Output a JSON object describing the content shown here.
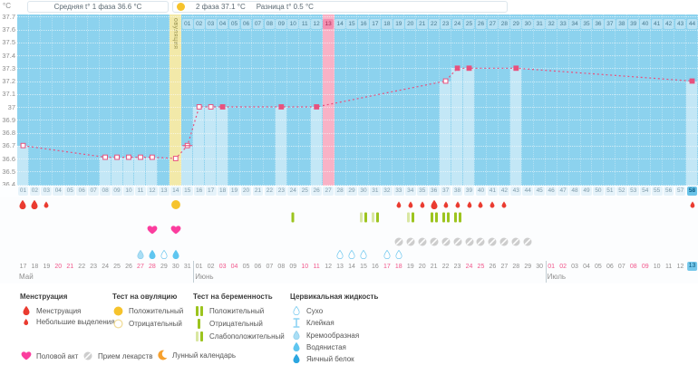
{
  "header": {
    "unit": "°C",
    "avg_phase1": "Средняя t° 1 фаза 36.6 °C",
    "phase2_label": "2 фаза 37.1 °C",
    "diff_label": "Разница t° 0.5 °C"
  },
  "colors": {
    "chart_bg": "#8cd2ee",
    "light_column": "#c8e9f7",
    "temp_line": "#e8517d",
    "ovulation_column": "#f2e9a9",
    "highlight_column": "#f8b2c6",
    "menstruation": "#ea3b30",
    "test_yellow": "#f6c32c",
    "test_green_dark": "#9cc41e",
    "test_green_light": "#d9e7a2",
    "heart": "#fb3d9e",
    "cervical_blue": "#5fc6f0",
    "current_day": "#69c3e8",
    "weekend_date": "#f1568b"
  },
  "chart_data": {
    "type": "line",
    "ylabel": "°C",
    "ylim": [
      36.4,
      37.7
    ],
    "ytick_labels": [
      "37.7",
      "37.6",
      "37.5",
      "37.4",
      "37.3",
      "37.2",
      "37.1",
      "37",
      "36.9",
      "36.8",
      "36.7",
      "36.6",
      "36.5",
      "36.4"
    ],
    "cycle_days": 58,
    "dpo_count": 44,
    "ovulation_day": 14,
    "ovulation_column_label": "овуляция",
    "highlighted_dpo": 13,
    "highlighted_cycle_day": 27,
    "current_cycle_day": 58,
    "grid": true,
    "points": [
      {
        "day": 1,
        "temp": 36.7
      },
      {
        "day": 8,
        "temp": 36.61
      },
      {
        "day": 9,
        "temp": 36.61
      },
      {
        "day": 10,
        "temp": 36.61
      },
      {
        "day": 11,
        "temp": 36.61
      },
      {
        "day": 12,
        "temp": 36.61
      },
      {
        "day": 14,
        "temp": 36.6
      },
      {
        "day": 15,
        "temp": 36.7,
        "excluded": true
      },
      {
        "day": 16,
        "temp": 37.0
      },
      {
        "day": 17,
        "temp": 37.0
      },
      {
        "day": 18,
        "temp": 37.0,
        "filled": true
      },
      {
        "day": 23,
        "temp": 37.0,
        "filled": true
      },
      {
        "day": 26,
        "temp": 37.0,
        "filled": true
      },
      {
        "day": 37,
        "temp": 37.2
      },
      {
        "day": 38,
        "temp": 37.3,
        "filled": true
      },
      {
        "day": 39,
        "temp": 37.3,
        "filled": true
      },
      {
        "day": 43,
        "temp": 37.3,
        "filled": true
      },
      {
        "day": 58,
        "temp": 37.2,
        "filled": true
      }
    ]
  },
  "events": {
    "menstruation": [
      {
        "day": 1,
        "size": "big"
      },
      {
        "day": 2,
        "size": "big"
      },
      {
        "day": 3,
        "size": "small"
      },
      {
        "day": 33,
        "size": "small"
      },
      {
        "day": 34,
        "size": "small"
      },
      {
        "day": 35,
        "size": "small"
      },
      {
        "day": 36,
        "size": "big"
      },
      {
        "day": 37,
        "size": "small"
      },
      {
        "day": 38,
        "size": "small"
      },
      {
        "day": 39,
        "size": "small"
      },
      {
        "day": 40,
        "size": "small"
      },
      {
        "day": 41,
        "size": "small"
      },
      {
        "day": 42,
        "size": "small"
      },
      {
        "day": 58,
        "size": "small"
      }
    ],
    "ovulation_tests": [
      {
        "day": 14,
        "result": "positive"
      }
    ],
    "pregnancy_tests": [
      {
        "day": 24,
        "result": "negative"
      },
      {
        "day": 30,
        "result": "weak"
      },
      {
        "day": 31,
        "result": "weak"
      },
      {
        "day": 34,
        "result": "weak"
      },
      {
        "day": 36,
        "result": "positive"
      },
      {
        "day": 37,
        "result": "positive"
      },
      {
        "day": 38,
        "result": "positive"
      }
    ],
    "intercourse": [
      12,
      14
    ],
    "medication": [
      33,
      34,
      35,
      36,
      37,
      38,
      39,
      40,
      41,
      42,
      43,
      44
    ],
    "cervical": [
      {
        "day": 11,
        "type": "creamy"
      },
      {
        "day": 12,
        "type": "watery"
      },
      {
        "day": 13,
        "type": "dry"
      },
      {
        "day": 14,
        "type": "watery"
      },
      {
        "day": 28,
        "type": "dry"
      },
      {
        "day": 29,
        "type": "dry"
      },
      {
        "day": 30,
        "type": "dry"
      },
      {
        "day": 32,
        "type": "dry"
      },
      {
        "day": 33,
        "type": "dry"
      }
    ]
  },
  "calendar": {
    "months": [
      {
        "name": "Май",
        "from": 17,
        "to": 31
      },
      {
        "name": "Июнь",
        "from": 1,
        "to": 30
      },
      {
        "name": "Июль",
        "from": 1,
        "to": 13
      }
    ],
    "first_day_weekday": "wednesday",
    "current_cycle_day": 58
  },
  "legend": {
    "columns": [
      {
        "title": "Менструация",
        "items": [
          {
            "icon": "drop-red-big",
            "label": "Менструация"
          },
          {
            "icon": "drop-red-small",
            "label": "Небольшие выделения"
          }
        ]
      },
      {
        "title": "Тест на овуляцию",
        "items": [
          {
            "icon": "circle-yellow",
            "label": "Положительный"
          },
          {
            "icon": "circle-outline",
            "label": "Отрицательный"
          }
        ]
      },
      {
        "title": "Тест на беременность",
        "items": [
          {
            "icon": "bars-positive",
            "label": "Положительный"
          },
          {
            "icon": "bar-negative",
            "label": "Отрицательный"
          },
          {
            "icon": "bars-weak",
            "label": "Слабоположительный"
          }
        ]
      },
      {
        "title": "Цервикальная жидкость",
        "items": [
          {
            "icon": "drop-outline",
            "label": "Сухо"
          },
          {
            "icon": "ibeam",
            "label": "Клейкая"
          },
          {
            "icon": "drop-creamy",
            "label": "Кремообразная"
          },
          {
            "icon": "drop-watery",
            "label": "Водянистая"
          },
          {
            "icon": "drop-eggwhite",
            "label": "Яичный белок"
          }
        ]
      }
    ],
    "extras": [
      {
        "icon": "heart",
        "label": "Половой акт"
      },
      {
        "icon": "pill",
        "label": "Прием лекарств"
      },
      {
        "icon": "moon",
        "label": "Лунный календарь"
      }
    ]
  }
}
